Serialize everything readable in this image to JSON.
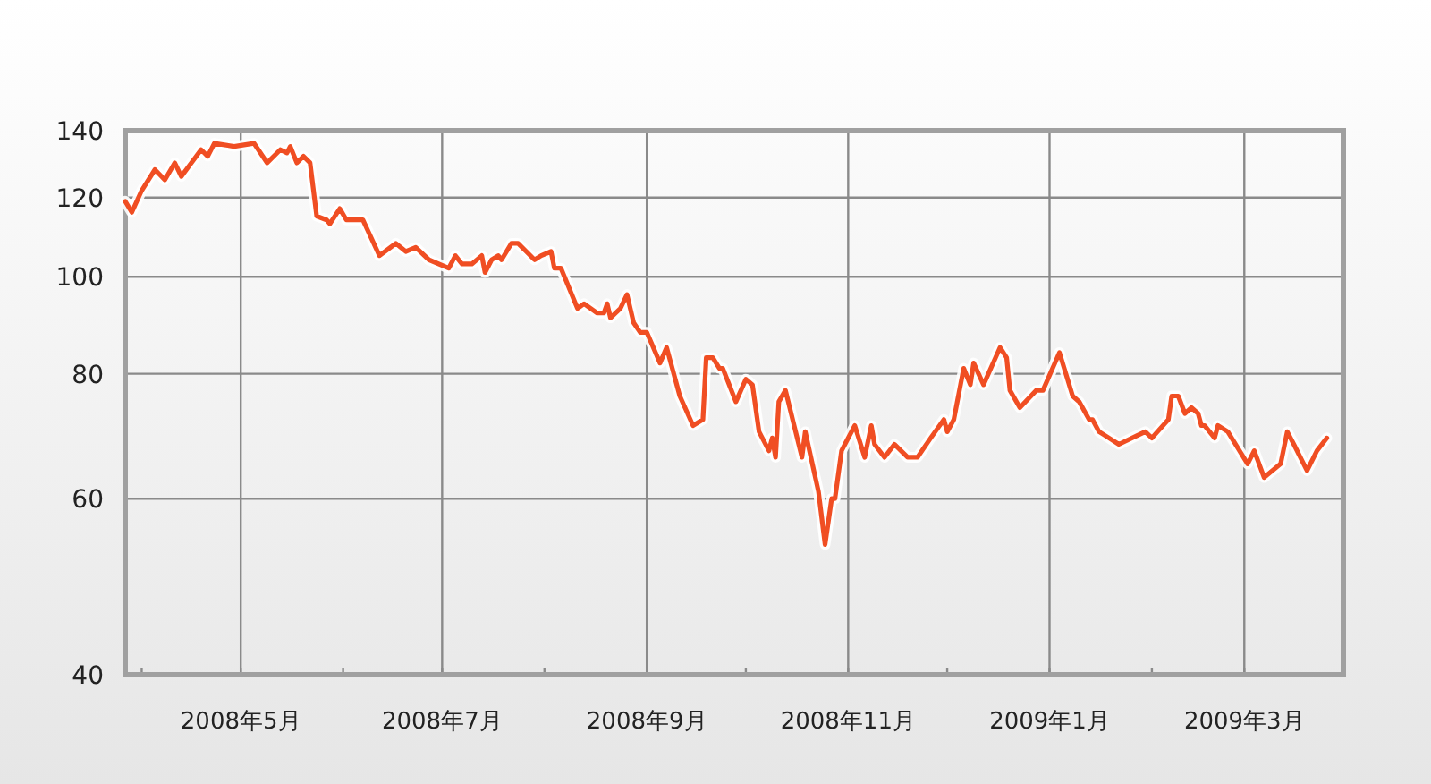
{
  "chart_data": {
    "type": "line",
    "log": true,
    "grid": true,
    "line_style": "solid",
    "xlim": [
      "2008-03-27",
      "2009-03-31"
    ],
    "xticks": [
      {
        "value": "2008-04-01",
        "label": null
      },
      {
        "value": "2008-05-01",
        "label": "2008年5月"
      },
      {
        "value": "2008-06-01",
        "label": null
      },
      {
        "value": "2008-07-01",
        "label": "2008年7月"
      },
      {
        "value": "2008-08-01",
        "label": null
      },
      {
        "value": "2008-09-01",
        "label": "2008年9月"
      },
      {
        "value": "2008-10-01",
        "label": null
      },
      {
        "value": "2008-11-01",
        "label": "2008年11月"
      },
      {
        "value": "2008-12-01",
        "label": null
      },
      {
        "value": "2009-01-01",
        "label": "2009年1月"
      },
      {
        "value": "2009-02-01",
        "label": null
      },
      {
        "value": "2009-03-01",
        "label": "2009年3月"
      }
    ],
    "ylim": [
      40,
      140
    ],
    "yticks": [
      40,
      60,
      80,
      100,
      120,
      140
    ],
    "series": [
      {
        "color": "#f04e23",
        "x": [
          "2008-03-27",
          "2008-03-29",
          "2008-04-01",
          "2008-04-05",
          "2008-04-08",
          "2008-04-11",
          "2008-04-13",
          "2008-04-19",
          "2008-04-21",
          "2008-04-23",
          "2008-04-29",
          "2008-05-05",
          "2008-05-09",
          "2008-05-13",
          "2008-05-15",
          "2008-05-16",
          "2008-05-18",
          "2008-05-20",
          "2008-05-22",
          "2008-05-24",
          "2008-05-27",
          "2008-05-28",
          "2008-05-31",
          "2008-06-02",
          "2008-06-07",
          "2008-06-12",
          "2008-06-17",
          "2008-06-20",
          "2008-06-23",
          "2008-06-27",
          "2008-07-03",
          "2008-07-05",
          "2008-07-07",
          "2008-07-10",
          "2008-07-13",
          "2008-07-14",
          "2008-07-16",
          "2008-07-18",
          "2008-07-19",
          "2008-07-22",
          "2008-07-24",
          "2008-07-29",
          "2008-07-31",
          "2008-08-03",
          "2008-08-04",
          "2008-08-06",
          "2008-08-11",
          "2008-08-13",
          "2008-08-17",
          "2008-08-19",
          "2008-08-20",
          "2008-08-21",
          "2008-08-24",
          "2008-08-26",
          "2008-08-28",
          "2008-08-30",
          "2008-09-01",
          "2008-09-05",
          "2008-09-07",
          "2008-09-11",
          "2008-09-15",
          "2008-09-18",
          "2008-09-19",
          "2008-09-21",
          "2008-09-23",
          "2008-09-24",
          "2008-09-28",
          "2008-10-01",
          "2008-10-03",
          "2008-10-05",
          "2008-10-08",
          "2008-10-09",
          "2008-10-10",
          "2008-10-11",
          "2008-10-13",
          "2008-10-18",
          "2008-10-19",
          "2008-10-23",
          "2008-10-25",
          "2008-10-27",
          "2008-10-28",
          "2008-10-30",
          "2008-10-31",
          "2008-11-03",
          "2008-11-06",
          "2008-11-08",
          "2008-11-09",
          "2008-11-12",
          "2008-11-15",
          "2008-11-19",
          "2008-11-21",
          "2008-11-22",
          "2008-11-26",
          "2008-11-30",
          "2008-12-01",
          "2008-12-03",
          "2008-12-06",
          "2008-12-08",
          "2008-12-09",
          "2008-12-12",
          "2008-12-17",
          "2008-12-19",
          "2008-12-20",
          "2008-12-23",
          "2008-12-28",
          "2008-12-30",
          "2009-01-04",
          "2009-01-08",
          "2009-01-10",
          "2009-01-13",
          "2009-01-14",
          "2009-01-16",
          "2009-01-19",
          "2009-01-22",
          "2009-01-30",
          "2009-02-01",
          "2009-02-06",
          "2009-02-07",
          "2009-02-09",
          "2009-02-11",
          "2009-02-13",
          "2009-02-15",
          "2009-02-16",
          "2009-02-17",
          "2009-02-20",
          "2009-02-21",
          "2009-02-24",
          "2009-03-02",
          "2009-03-04",
          "2009-03-07",
          "2009-03-12",
          "2009-03-14",
          "2009-03-16",
          "2009-03-20",
          "2009-03-23",
          "2009-03-26"
        ],
        "values": [
          119,
          116,
          122,
          128,
          125,
          130,
          126,
          134,
          132,
          136,
          135,
          136,
          130,
          134,
          133,
          135,
          130,
          132,
          130,
          115,
          114,
          113,
          117,
          114,
          114,
          105,
          108,
          106,
          107,
          104,
          102,
          105,
          103,
          103,
          105,
          101,
          104,
          105,
          104,
          108,
          108,
          104,
          105,
          106,
          102,
          102,
          93,
          94,
          92,
          92,
          94,
          91,
          93,
          96,
          90,
          88,
          88,
          82,
          85,
          76,
          71,
          72,
          83,
          83,
          81,
          81,
          75,
          79,
          78,
          70,
          67,
          69,
          66,
          75,
          77,
          66,
          70,
          61,
          54,
          60,
          60,
          67,
          68,
          71,
          66,
          71,
          68,
          66,
          68,
          66,
          66,
          66,
          69,
          72,
          70,
          72,
          81,
          78,
          82,
          78,
          85,
          83,
          77,
          74,
          77,
          77,
          84,
          76,
          75,
          72,
          72,
          70,
          69,
          68,
          70,
          69,
          72,
          76,
          76,
          73,
          74,
          73,
          71,
          71,
          69,
          71,
          70,
          65,
          67,
          63,
          65,
          70,
          68,
          64,
          67,
          69
        ]
      }
    ]
  }
}
